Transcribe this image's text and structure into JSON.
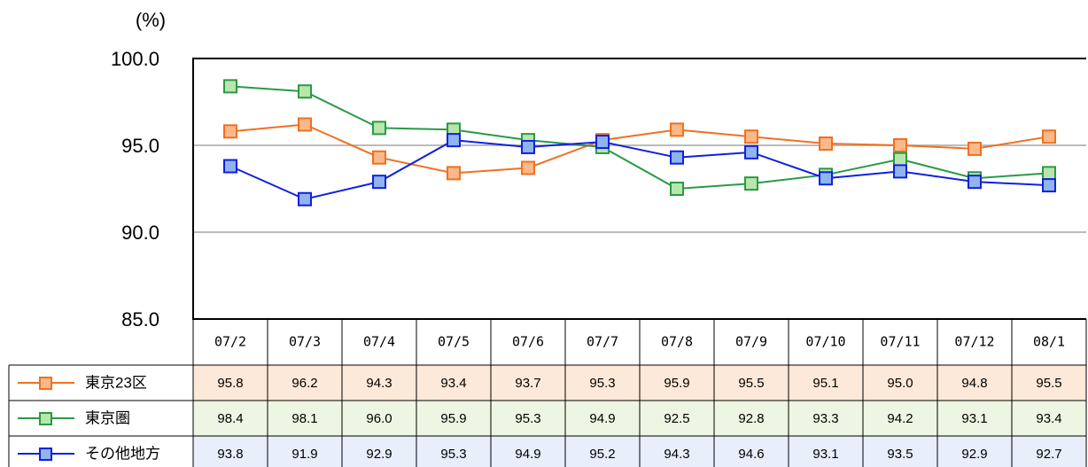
{
  "chart_data": {
    "type": "line",
    "y_label": "(%)",
    "categories": [
      "07/2",
      "07/3",
      "07/4",
      "07/5",
      "07/6",
      "07/7",
      "07/8",
      "07/9",
      "07/10",
      "07/11",
      "07/12",
      "08/1"
    ],
    "ylim": [
      85,
      100
    ],
    "yticks": [
      {
        "value": 85,
        "label": "85.0"
      },
      {
        "value": 90,
        "label": "90.0"
      },
      {
        "value": 95,
        "label": "95.0"
      },
      {
        "value": 100,
        "label": "100.0"
      }
    ],
    "grid": true,
    "series": [
      {
        "name": "東京23区",
        "color": "#f07020",
        "marker_fill": "#fbb98a",
        "row_fill": "#fde9d9",
        "values": [
          95.8,
          96.2,
          94.3,
          93.4,
          93.7,
          95.3,
          95.9,
          95.5,
          95.1,
          95.0,
          94.8,
          95.5
        ],
        "value_labels": [
          "95.8",
          "96.2",
          "94.3",
          "93.4",
          "93.7",
          "95.3",
          "95.9",
          "95.5",
          "95.1",
          "95.0",
          "94.8",
          "95.5"
        ]
      },
      {
        "name": "東京圏",
        "color": "#2a9a45",
        "marker_fill": "#b9e6ad",
        "row_fill": "#ecf6e2",
        "values": [
          98.4,
          98.1,
          96.0,
          95.9,
          95.3,
          94.9,
          92.5,
          92.8,
          93.3,
          94.2,
          93.1,
          93.4
        ],
        "value_labels": [
          "98.4",
          "98.1",
          "96.0",
          "95.9",
          "95.3",
          "94.9",
          "92.5",
          "92.8",
          "93.3",
          "94.2",
          "93.1",
          "93.4"
        ]
      },
      {
        "name": "その他地方",
        "color": "#1020e0",
        "marker_fill": "#8fb4ee",
        "row_fill": "#e8eefa",
        "values": [
          93.8,
          91.9,
          92.9,
          95.3,
          94.9,
          95.2,
          94.3,
          94.6,
          93.1,
          93.5,
          92.9,
          92.7
        ],
        "value_labels": [
          "93.8",
          "91.9",
          "92.9",
          "95.3",
          "94.9",
          "95.2",
          "94.3",
          "94.6",
          "93.1",
          "93.5",
          "92.9",
          "92.7"
        ]
      }
    ]
  }
}
